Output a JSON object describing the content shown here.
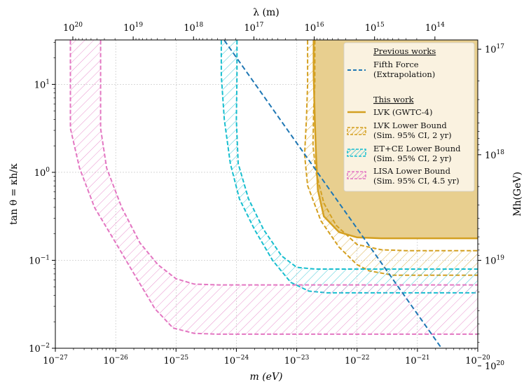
{
  "chart_data": {
    "type": "line",
    "xlabel": "m (eV)",
    "ylabel": "tan θ = κh/κ",
    "top_xlabel": "λ (m)",
    "right_ylabel": "Mh(GeV)",
    "xscale": "log",
    "yscale": "log",
    "xlim": [
      1e-27,
      1e-20
    ],
    "ylim": [
      0.01,
      32
    ],
    "grid": true,
    "x_ticks": [
      {
        "value": -27,
        "label": "10^-27"
      },
      {
        "value": -26,
        "label": "10^-26"
      },
      {
        "value": -25,
        "label": "10^-25"
      },
      {
        "value": -24,
        "label": "10^-24"
      },
      {
        "value": -23,
        "label": "10^-23"
      },
      {
        "value": -22,
        "label": "10^-22"
      },
      {
        "value": -21,
        "label": "10^-21"
      },
      {
        "value": -20,
        "label": "10^-20"
      }
    ],
    "y_ticks": [
      {
        "value": -2,
        "label": "10^-2"
      },
      {
        "value": -1,
        "label": "10^-1"
      },
      {
        "value": 0,
        "label": "10^0"
      },
      {
        "value": 1,
        "label": "10^1"
      }
    ],
    "top_ticks": [
      {
        "value": 20,
        "label": "10^20"
      },
      {
        "value": 19,
        "label": "10^19"
      },
      {
        "value": 18,
        "label": "10^18"
      },
      {
        "value": 17,
        "label": "10^17"
      },
      {
        "value": 16,
        "label": "10^16"
      },
      {
        "value": 15,
        "label": "10^15"
      },
      {
        "value": 14,
        "label": "10^14"
      }
    ],
    "right_ticks": [
      {
        "log_y": 1.4,
        "label": "10^17"
      },
      {
        "log_y": 0.2,
        "label": "10^18"
      },
      {
        "log_y": -1.0,
        "label": "10^19"
      },
      {
        "log_y": -2.2,
        "label": "10^20"
      }
    ],
    "series": [
      {
        "name": "Fifth Force (Extrapolation)",
        "style": "dashed-line",
        "color": "#1f77b4",
        "points": [
          [
            -24.2,
            1.5
          ],
          [
            -20.6,
            -2.0
          ]
        ]
      },
      {
        "name": "LVK (GWTC-4)",
        "style": "solid-filled",
        "color": "#d4a021",
        "fill": "#e8cf8f",
        "points": [
          [
            -22.72,
            1.5
          ],
          [
            -22.72,
            1.1
          ],
          [
            -22.7,
            0.6
          ],
          [
            -22.68,
            0.2
          ],
          [
            -22.65,
            -0.2
          ],
          [
            -22.55,
            -0.5
          ],
          [
            -22.3,
            -0.68
          ],
          [
            -22.0,
            -0.74
          ],
          [
            -21.6,
            -0.75
          ],
          [
            -20.0,
            -0.75
          ]
        ]
      },
      {
        "name": "LVK Lower Bound (Sim. 95% CI, 2 yr)",
        "style": "hatched-band",
        "color": "#d4a021",
        "upper": [
          [
            -22.7,
            1.5
          ],
          [
            -22.7,
            1.0
          ],
          [
            -22.72,
            0.7
          ],
          [
            -22.73,
            0.3
          ],
          [
            -22.68,
            0.0
          ],
          [
            -22.55,
            -0.35
          ],
          [
            -22.35,
            -0.6
          ],
          [
            -22.0,
            -0.82
          ],
          [
            -21.6,
            -0.88
          ],
          [
            -21.2,
            -0.89
          ],
          [
            -20.0,
            -0.89
          ]
        ],
        "lower": [
          [
            -22.82,
            1.5
          ],
          [
            -22.82,
            1.0
          ],
          [
            -22.84,
            0.6
          ],
          [
            -22.87,
            0.2
          ],
          [
            -22.82,
            -0.15
          ],
          [
            -22.6,
            -0.55
          ],
          [
            -22.3,
            -0.85
          ],
          [
            -22.0,
            -1.05
          ],
          [
            -21.8,
            -1.12
          ],
          [
            -21.4,
            -1.17
          ],
          [
            -20.0,
            -1.17
          ]
        ]
      },
      {
        "name": "ET+CE Lower Bound (Sim. 95% CI, 2 yr)",
        "style": "hatched-band",
        "color": "#17becf",
        "upper": [
          [
            -23.99,
            1.5
          ],
          [
            -23.99,
            1.1
          ],
          [
            -24.0,
            0.6
          ],
          [
            -23.97,
            0.1
          ],
          [
            -23.8,
            -0.3
          ],
          [
            -23.55,
            -0.65
          ],
          [
            -23.25,
            -0.95
          ],
          [
            -23.0,
            -1.08
          ],
          [
            -22.7,
            -1.1
          ],
          [
            -20.0,
            -1.1
          ]
        ],
        "lower": [
          [
            -24.25,
            1.5
          ],
          [
            -24.25,
            1.1
          ],
          [
            -24.2,
            0.6
          ],
          [
            -24.1,
            0.1
          ],
          [
            -23.95,
            -0.3
          ],
          [
            -23.7,
            -0.65
          ],
          [
            -23.4,
            -1.0
          ],
          [
            -23.1,
            -1.25
          ],
          [
            -22.8,
            -1.35
          ],
          [
            -22.5,
            -1.37
          ],
          [
            -20.0,
            -1.37
          ]
        ]
      },
      {
        "name": "LISA Lower Bound (Sim. 95% CI, 4.5 yr)",
        "style": "hatched-band",
        "color": "#e377c2",
        "upper": [
          [
            -26.25,
            1.5
          ],
          [
            -26.25,
            0.5
          ],
          [
            -26.15,
            0.05
          ],
          [
            -25.9,
            -0.4
          ],
          [
            -25.6,
            -0.8
          ],
          [
            -25.3,
            -1.05
          ],
          [
            -25.0,
            -1.21
          ],
          [
            -24.7,
            -1.27
          ],
          [
            -24.3,
            -1.28
          ],
          [
            -20.0,
            -1.28
          ]
        ],
        "lower": [
          [
            -26.75,
            1.5
          ],
          [
            -26.75,
            0.5
          ],
          [
            -26.6,
            0.05
          ],
          [
            -26.35,
            -0.4
          ],
          [
            -26.0,
            -0.8
          ],
          [
            -25.7,
            -1.15
          ],
          [
            -25.35,
            -1.55
          ],
          [
            -25.05,
            -1.77
          ],
          [
            -24.7,
            -1.83
          ],
          [
            -24.3,
            -1.84
          ],
          [
            -20.0,
            -1.84
          ]
        ]
      }
    ]
  },
  "legend": {
    "section_previous": "Previous works",
    "fifth_force_1": "Fifth Force",
    "fifth_force_2": "(Extrapolation)",
    "section_this": "This work",
    "lvk": "LVK (GWTC-4)",
    "lvk_lb_1": "LVK Lower Bound",
    "lvk_lb_2": "(Sim. 95% CI, 2 yr)",
    "etce_1": "ET+CE Lower Bound",
    "etce_2": "(Sim. 95% CI, 2 yr)",
    "lisa_1": "LISA Lower Bound",
    "lisa_2": "(Sim. 95% CI, 4.5 yr)"
  }
}
